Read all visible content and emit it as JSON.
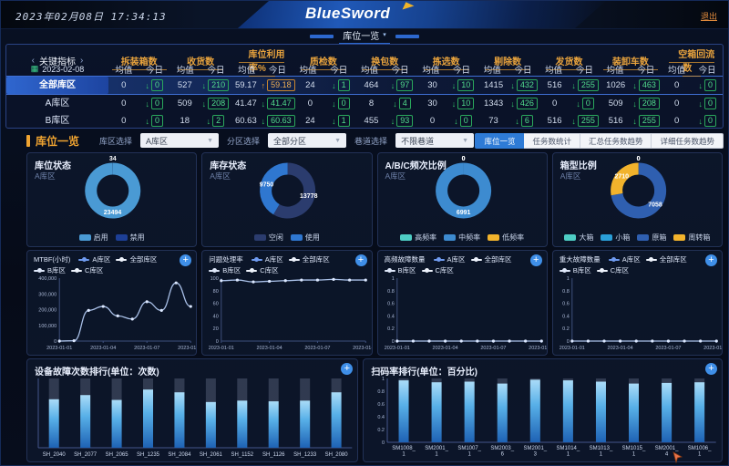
{
  "header": {
    "datetime": "2023年02月08日 17:34:13",
    "logo": "BlueSword",
    "logout_label": "退出"
  },
  "nav": {
    "active_tab": "库位一览",
    "caret": "▾"
  },
  "kpi": {
    "prev_icon": "‹",
    "next_icon": "›",
    "title": "关键指标",
    "date": "2023-02-08",
    "calendar_icon": "▦",
    "subcols": [
      "均值",
      "今日"
    ],
    "columns": [
      "拆装箱数",
      "收货数",
      "库位利用率%",
      "质检数",
      "换包数",
      "拣选数",
      "剔除数",
      "发货数",
      "装卸车数",
      "空箱回流数"
    ],
    "rows": [
      {
        "name": "全部库区",
        "selected": true,
        "cells": [
          [
            "0",
            "0",
            "down"
          ],
          [
            "527",
            "210",
            "down"
          ],
          [
            "59.17",
            "59.18",
            "up"
          ],
          [
            "24",
            "1",
            "down"
          ],
          [
            "464",
            "97",
            "down"
          ],
          [
            "30",
            "10",
            "down"
          ],
          [
            "1415",
            "432",
            "down"
          ],
          [
            "516",
            "255",
            "down"
          ],
          [
            "1026",
            "463",
            "down"
          ],
          [
            "0",
            "0",
            "down"
          ]
        ]
      },
      {
        "name": "A库区",
        "selected": false,
        "cells": [
          [
            "0",
            "0",
            "down"
          ],
          [
            "509",
            "208",
            "down"
          ],
          [
            "41.47",
            "41.47",
            "down"
          ],
          [
            "0",
            "0",
            "down"
          ],
          [
            "8",
            "4",
            "down"
          ],
          [
            "30",
            "10",
            "down"
          ],
          [
            "1343",
            "426",
            "down"
          ],
          [
            "0",
            "0",
            "down"
          ],
          [
            "509",
            "208",
            "down"
          ],
          [
            "0",
            "0",
            "down"
          ]
        ]
      },
      {
        "name": "B库区",
        "selected": false,
        "cells": [
          [
            "0",
            "0",
            "down"
          ],
          [
            "18",
            "2",
            "down"
          ],
          [
            "60.63",
            "60.63",
            "down"
          ],
          [
            "24",
            "1",
            "down"
          ],
          [
            "455",
            "93",
            "down"
          ],
          [
            "0",
            "0",
            "down"
          ],
          [
            "73",
            "6",
            "down"
          ],
          [
            "516",
            "255",
            "down"
          ],
          [
            "516",
            "255",
            "down"
          ],
          [
            "0",
            "0",
            "down"
          ]
        ]
      }
    ]
  },
  "filters": {
    "title": "库位一览",
    "selects": [
      {
        "label": "库区选择",
        "value": "A库区"
      },
      {
        "label": "分区选择",
        "value": "全部分区"
      },
      {
        "label": "巷道选择",
        "value": "不限巷道"
      }
    ],
    "buttons": [
      {
        "label": "库位一览",
        "active": true
      },
      {
        "label": "任务数统计",
        "active": false
      },
      {
        "label": "汇总任务数趋势",
        "active": false
      },
      {
        "label": "详细任务数趋势",
        "active": false
      }
    ]
  },
  "colors": {
    "accent_orange": "#f0a431",
    "green": "#35c56d",
    "active_blue": "#2e7bd6",
    "bar_blue": "#58b0e8",
    "donut_lightblue": "#4a9ad4",
    "donut_navy": "#2b3c6e",
    "donut_blue": "#2f77d0",
    "donut_yellow": "#f2b32c",
    "donut_teal": "#4ecdc4"
  },
  "chart_data": [
    {
      "type": "pie",
      "title": "库位状态",
      "subtitle": "A库区",
      "slices": [
        {
          "label": "禁用",
          "value": 34,
          "color": "#1d3f96"
        },
        {
          "label": "启用",
          "value": 23494,
          "color": "#4a9ad4"
        }
      ],
      "legend": [
        {
          "label": "启用",
          "color": "#4a9ad4"
        },
        {
          "label": "禁用",
          "color": "#1d3f96"
        }
      ]
    },
    {
      "type": "pie",
      "title": "库存状态",
      "subtitle": "A库区",
      "slices": [
        {
          "label": "空闲",
          "value": 13778,
          "color": "#2b3c6e"
        },
        {
          "label": "使用",
          "value": 9750,
          "color": "#2f77d0"
        }
      ],
      "legend": [
        {
          "label": "空闲",
          "color": "#2b3c6e"
        },
        {
          "label": "使用",
          "color": "#2f77d0"
        }
      ]
    },
    {
      "type": "pie",
      "title": "A/B/C频次比例",
      "subtitle": "A库区",
      "slices": [
        {
          "label": "高频率",
          "value": 0,
          "color": "#4ecdc4"
        },
        {
          "label": "中频率",
          "value": 6991,
          "color": "#3d8bd0"
        },
        {
          "label": "低频率",
          "value": 0,
          "color": "#f2b32c"
        }
      ],
      "legend": [
        {
          "label": "高频率",
          "color": "#4ecdc4"
        },
        {
          "label": "中频率",
          "color": "#3d8bd0"
        },
        {
          "label": "低频率",
          "color": "#f2b32c"
        }
      ]
    },
    {
      "type": "pie",
      "title": "箱型比例",
      "subtitle": "A库区",
      "slices": [
        {
          "label": "大箱",
          "value": 0,
          "color": "#4ecdc4"
        },
        {
          "label": "小箱",
          "value": 0,
          "color": "#2a9fd8"
        },
        {
          "label": "原箱",
          "value": 7058,
          "color": "#2f5fb0"
        },
        {
          "label": "周转箱",
          "value": 2710,
          "color": "#f2b32c"
        }
      ],
      "legend": [
        {
          "label": "大箱",
          "color": "#4ecdc4"
        },
        {
          "label": "小箱",
          "color": "#2a9fd8"
        },
        {
          "label": "原箱",
          "color": "#2f5fb0"
        },
        {
          "label": "周转箱",
          "color": "#f2b32c"
        }
      ]
    },
    {
      "type": "line",
      "title": "MTBF(小时)",
      "legend": [
        {
          "label": "A库区",
          "color": "#6f9bf0"
        },
        {
          "label": "全部库区",
          "color": "#eef3fc"
        },
        {
          "label": "B库区",
          "color": "#dfe8fa"
        },
        {
          "label": "C库区",
          "color": "#eef3fc"
        }
      ],
      "x": [
        "2023-01-01",
        "2023-01-02",
        "2023-01-03",
        "2023-01-04",
        "2023-01-05",
        "2023-01-06",
        "2023-01-07",
        "2023-01-08",
        "2023-01-09",
        "2023-01-10"
      ],
      "xtick_idx": [
        0,
        3,
        6,
        9
      ],
      "yticks": [
        0,
        100000,
        200000,
        300000,
        400000
      ],
      "ylim": [
        0,
        400000
      ],
      "series": [
        {
          "name": "A库区",
          "color": "#a9c0e8",
          "values": [
            0,
            2000,
            195000,
            220000,
            160000,
            140000,
            250000,
            195000,
            370000,
            220000
          ]
        }
      ]
    },
    {
      "type": "line",
      "title": "问题处理率",
      "legend": [
        {
          "label": "A库区",
          "color": "#6f9bf0"
        },
        {
          "label": "全部库区",
          "color": "#eef3fc"
        },
        {
          "label": "B库区",
          "color": "#dfe8fa"
        },
        {
          "label": "C库区",
          "color": "#eef3fc"
        }
      ],
      "x": [
        "2023-01-01",
        "2023-01-02",
        "2023-01-03",
        "2023-01-04",
        "2023-01-05",
        "2023-01-06",
        "2023-01-07",
        "2023-01-08",
        "2023-01-09",
        "2023-01-10"
      ],
      "xtick_idx": [
        0,
        3,
        6,
        9
      ],
      "yticks": [
        0,
        20,
        40,
        60,
        80,
        100
      ],
      "ylim": [
        0,
        100
      ],
      "series": [
        {
          "name": "A库区",
          "color": "#a9c0e8",
          "values": [
            96,
            97,
            94,
            95,
            96,
            97,
            97,
            98,
            97,
            97
          ]
        }
      ]
    },
    {
      "type": "line",
      "title": "高频故障数量",
      "legend": [
        {
          "label": "A库区",
          "color": "#6f9bf0"
        },
        {
          "label": "全部库区",
          "color": "#eef3fc"
        },
        {
          "label": "B库区",
          "color": "#dfe8fa"
        },
        {
          "label": "C库区",
          "color": "#eef3fc"
        }
      ],
      "x": [
        "2023-01-01",
        "2023-01-02",
        "2023-01-03",
        "2023-01-04",
        "2023-01-05",
        "2023-01-06",
        "2023-01-07",
        "2023-01-08",
        "2023-01-09",
        "2023-01-10"
      ],
      "xtick_idx": [
        0,
        3,
        6,
        9
      ],
      "yticks": [
        0,
        0.2,
        0.4,
        0.6,
        0.8,
        1
      ],
      "ylim": [
        0,
        1
      ],
      "series": [
        {
          "name": "A库区",
          "color": "#a9c0e8",
          "values": [
            0,
            0,
            0,
            0,
            0,
            0,
            0,
            0,
            0,
            0
          ]
        }
      ]
    },
    {
      "type": "line",
      "title": "重大故障数量",
      "legend": [
        {
          "label": "A库区",
          "color": "#6f9bf0"
        },
        {
          "label": "全部库区",
          "color": "#eef3fc"
        },
        {
          "label": "B库区",
          "color": "#dfe8fa"
        },
        {
          "label": "C库区",
          "color": "#eef3fc"
        }
      ],
      "x": [
        "2023-01-01",
        "2023-01-02",
        "2023-01-03",
        "2023-01-04",
        "2023-01-05",
        "2023-01-06",
        "2023-01-07",
        "2023-01-08",
        "2023-01-09",
        "2023-01-10"
      ],
      "xtick_idx": [
        0,
        3,
        6,
        9
      ],
      "yticks": [
        0,
        0.2,
        0.4,
        0.6,
        0.8,
        1
      ],
      "ylim": [
        0,
        1
      ],
      "series": [
        {
          "name": "A库区",
          "color": "#a9c0e8",
          "values": [
            0,
            0,
            0,
            0,
            0,
            0,
            0,
            0,
            0,
            0
          ]
        }
      ]
    },
    {
      "type": "bar",
      "title": "设备故障次数排行(单位：次数)",
      "categories": [
        "SH_2040",
        "SH_2077",
        "SH_2065",
        "SH_1235",
        "SH_2084",
        "SH_2061",
        "SH_1152",
        "SH_1126",
        "SH_1233",
        "SH_2080"
      ],
      "values": [
        70,
        76,
        69,
        84,
        80,
        66,
        68,
        67,
        68,
        80
      ],
      "ylim": [
        0,
        100
      ],
      "yticks": [],
      "two_line_labels": false
    },
    {
      "type": "bar",
      "title": "扫码率排行(单位：百分比)",
      "categories": [
        "SM1008_1",
        "SM2001_1",
        "SM1007_1",
        "SM2003_6",
        "SM2001_3",
        "SM1014_1",
        "SM1013_1",
        "SM1015_1",
        "SM2001_4",
        "SM1006_1"
      ],
      "values": [
        0.97,
        0.94,
        0.95,
        0.92,
        0.98,
        0.97,
        0.95,
        0.92,
        0.93,
        0.94
      ],
      "ylim": [
        0,
        1
      ],
      "yticks": [
        0,
        0.2,
        0.4,
        0.6,
        0.8,
        1
      ],
      "two_line_labels": true
    }
  ]
}
